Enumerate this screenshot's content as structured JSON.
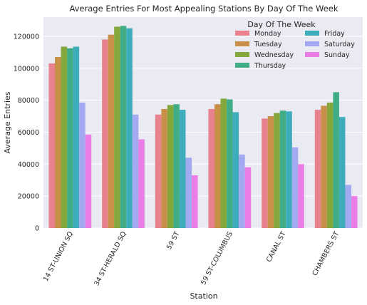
{
  "chart_data": {
    "type": "bar",
    "title": "Average Entries For Most Appealing Stations By Day Of The Week",
    "xlabel": "Station",
    "ylabel": "Average Entries",
    "categories": [
      "14 ST-UNION SQ",
      "34 ST-HERALD SQ",
      "59 ST",
      "59 ST-COLUMBUS",
      "CANAL ST",
      "CHAMBERS ST"
    ],
    "ylim": [
      0,
      132000
    ],
    "yticks": [
      "0",
      "20000",
      "40000",
      "60000",
      "80000",
      "100000",
      "120000"
    ],
    "grid": true,
    "legend_title": "Day Of The Week",
    "legend_position": "top-right",
    "series": [
      {
        "name": "Monday",
        "color": "#e8828e",
        "values": [
          103000,
          118000,
          71000,
          74500,
          68500,
          74000
        ]
      },
      {
        "name": "Tuesday",
        "color": "#c8914a",
        "values": [
          107000,
          121000,
          74500,
          77500,
          70000,
          76500
        ]
      },
      {
        "name": "Wednesday",
        "color": "#85a83c",
        "values": [
          113500,
          126000,
          77000,
          81000,
          72000,
          78500
        ]
      },
      {
        "name": "Thursday",
        "color": "#41ad86",
        "values": [
          112500,
          126500,
          77500,
          80500,
          73500,
          85000
        ]
      },
      {
        "name": "Friday",
        "color": "#3eadbb",
        "values": [
          113500,
          125000,
          74000,
          72500,
          73000,
          69500
        ]
      },
      {
        "name": "Saturday",
        "color": "#a3aaf1",
        "values": [
          78500,
          71000,
          44000,
          46000,
          50500,
          27000
        ]
      },
      {
        "name": "Sunday",
        "color": "#ea7ee6",
        "values": [
          58500,
          55500,
          33000,
          38000,
          40000,
          20000
        ]
      }
    ]
  }
}
